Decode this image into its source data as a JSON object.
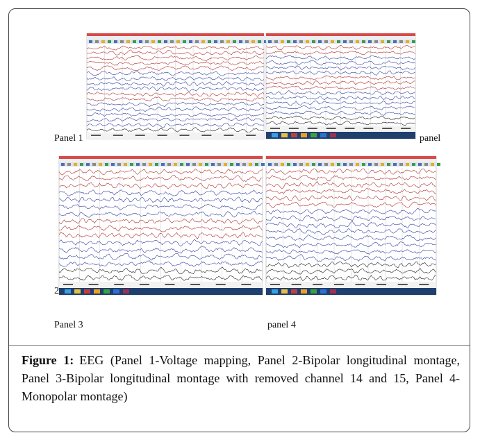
{
  "labels": {
    "panel_1": "Panel 1",
    "panel_2a": "panel",
    "panel_2b": "2",
    "panel_3": "Panel 3",
    "panel_4": "panel 4"
  },
  "caption": {
    "label": "Figure 1:",
    "text": "EEG (Panel 1-Voltage mapping, Panel 2-Bipolar longitudinal montage, Panel 3-Bipolar longitudinal montage with removed channel 14 and 15, Panel 4-Monopolar montage)"
  }
}
